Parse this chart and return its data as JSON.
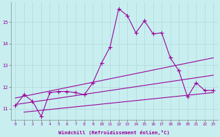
{
  "background_color": "#c8eef0",
  "grid_color": "#aadddd",
  "line_color": "#990099",
  "x_label": "Windchill (Refroidissement éolien,°C)",
  "x_ticks": [
    0,
    1,
    2,
    3,
    4,
    5,
    6,
    7,
    8,
    9,
    10,
    11,
    12,
    13,
    14,
    15,
    16,
    17,
    18,
    19,
    20,
    21,
    22,
    23
  ],
  "y_ticks": [
    11,
    12,
    13,
    14,
    15
  ],
  "ylim": [
    10.5,
    15.9
  ],
  "xlim": [
    -0.5,
    23.5
  ],
  "series1_x": [
    0,
    1,
    2,
    3,
    4,
    5,
    6,
    7,
    8,
    9,
    10,
    11,
    12,
    13,
    14,
    15,
    16,
    17,
    18,
    19,
    20,
    21,
    22,
    23
  ],
  "series1_y": [
    11.15,
    11.65,
    11.35,
    10.65,
    11.75,
    11.8,
    11.8,
    11.75,
    11.65,
    12.2,
    13.1,
    13.85,
    15.6,
    15.3,
    14.5,
    15.05,
    14.45,
    14.5,
    13.35,
    12.75,
    11.55,
    12.2,
    11.85,
    11.85
  ],
  "line2_x0": 0,
  "line2_x1": 23,
  "line2_y0": 11.5,
  "line2_y1": 13.35,
  "line3_x0": 0,
  "line3_x1": 23,
  "line3_y0": 11.2,
  "line3_y1": 12.55,
  "line4_x0": 1,
  "line4_x1": 23,
  "line4_y0": 10.85,
  "line4_y1": 11.75
}
